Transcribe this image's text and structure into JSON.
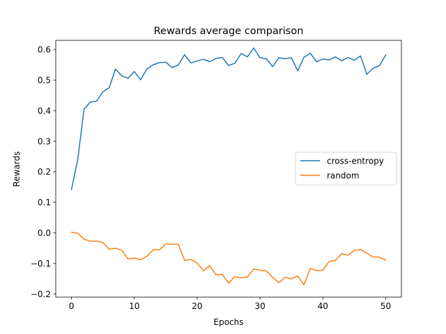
{
  "chart_data": {
    "type": "line",
    "title": "Rewards average comparison",
    "xlabel": "Epochs",
    "ylabel": "Rewards",
    "xlim": [
      -2.5,
      52.5
    ],
    "ylim": [
      -0.21,
      0.63
    ],
    "xticks": [
      0,
      10,
      20,
      30,
      40,
      50
    ],
    "xtick_labels": [
      "0",
      "10",
      "20",
      "30",
      "40",
      "50"
    ],
    "yticks": [
      -0.2,
      -0.1,
      0.0,
      0.1,
      0.2,
      0.3,
      0.4,
      0.5,
      0.6
    ],
    "ytick_labels": [
      "−0.2",
      "−0.1",
      "0.0",
      "0.1",
      "0.2",
      "0.3",
      "0.4",
      "0.5",
      "0.6"
    ],
    "grid": false,
    "legend_position": "center-right",
    "x": [
      0,
      1,
      2,
      3,
      4,
      5,
      6,
      7,
      8,
      9,
      10,
      11,
      12,
      13,
      14,
      15,
      16,
      17,
      18,
      19,
      20,
      21,
      22,
      23,
      24,
      25,
      26,
      27,
      28,
      29,
      30,
      31,
      32,
      33,
      34,
      35,
      36,
      37,
      38,
      39,
      40,
      41,
      42,
      43,
      44,
      45,
      46,
      47,
      48,
      49,
      50
    ],
    "series": [
      {
        "name": "cross-entropy",
        "color": "#1f77b4",
        "values": [
          0.142,
          0.24,
          0.405,
          0.428,
          0.431,
          0.462,
          0.475,
          0.536,
          0.514,
          0.506,
          0.528,
          0.501,
          0.536,
          0.55,
          0.557,
          0.559,
          0.541,
          0.549,
          0.583,
          0.556,
          0.563,
          0.568,
          0.56,
          0.571,
          0.574,
          0.548,
          0.555,
          0.587,
          0.576,
          0.605,
          0.573,
          0.57,
          0.544,
          0.573,
          0.57,
          0.573,
          0.53,
          0.575,
          0.588,
          0.56,
          0.569,
          0.566,
          0.576,
          0.563,
          0.574,
          0.565,
          0.579,
          0.519,
          0.539,
          0.547,
          0.582
        ]
      },
      {
        "name": "random",
        "color": "#ff7f0e",
        "values": [
          0.002,
          -0.001,
          -0.02,
          -0.027,
          -0.027,
          -0.031,
          -0.053,
          -0.05,
          -0.057,
          -0.085,
          -0.082,
          -0.088,
          -0.076,
          -0.055,
          -0.055,
          -0.036,
          -0.037,
          -0.037,
          -0.09,
          -0.087,
          -0.098,
          -0.124,
          -0.107,
          -0.137,
          -0.136,
          -0.164,
          -0.143,
          -0.147,
          -0.144,
          -0.118,
          -0.122,
          -0.124,
          -0.145,
          -0.163,
          -0.145,
          -0.15,
          -0.141,
          -0.17,
          -0.116,
          -0.123,
          -0.122,
          -0.093,
          -0.09,
          -0.068,
          -0.073,
          -0.057,
          -0.055,
          -0.066,
          -0.079,
          -0.079,
          -0.089
        ]
      }
    ]
  }
}
